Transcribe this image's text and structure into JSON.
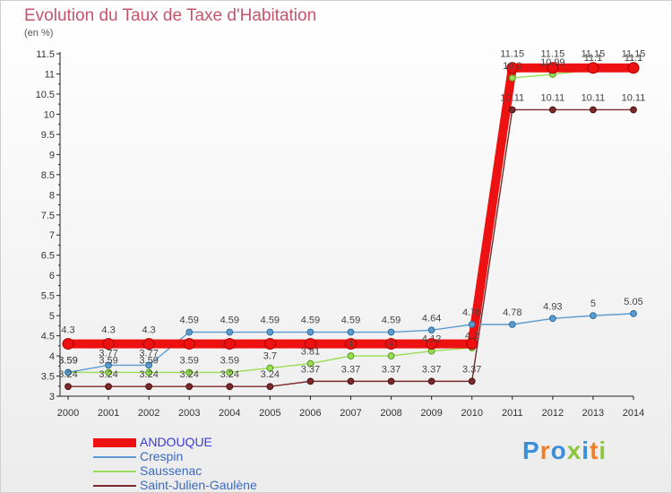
{
  "header": {
    "title": "Evolution du Taux de Taxe d'Habitation",
    "unit": "(en %)"
  },
  "logo": {
    "text": "Proxiti",
    "colors": [
      "#3b8fd6",
      "#f07e26",
      "#3b8fd6",
      "#8cc63f",
      "#3b8fd6",
      "#f07e26",
      "#8cc63f"
    ]
  },
  "chart_data": {
    "type": "line",
    "x": [
      "2000",
      "2001",
      "2002",
      "2003",
      "2004",
      "2005",
      "2006",
      "2007",
      "2008",
      "2009",
      "2010",
      "2011",
      "2012",
      "2013",
      "2014"
    ],
    "ylim": [
      3,
      11.5
    ],
    "yticks": [
      "3",
      "3.5",
      "4",
      "4.5",
      "5",
      "5.5",
      "6",
      "6.5",
      "7",
      "7.5",
      "8",
      "8.5",
      "9",
      "9.5",
      "10",
      "10.5",
      "11",
      "11.5"
    ],
    "grid": false,
    "legend_position": "bottom-left",
    "series": [
      {
        "name": "ANDOUQUE",
        "color": "#ee1111",
        "values": [
          4.3,
          4.3,
          4.3,
          4.3,
          4.3,
          4.3,
          4.3,
          4.3,
          4.3,
          4.3,
          4.3,
          11.15,
          11.15,
          11.15,
          11.15
        ],
        "labels": [
          "4.3",
          "4.3",
          "4.3",
          "",
          "",
          "",
          "",
          "",
          "",
          "",
          "",
          "11.15",
          "11.15",
          "11.15",
          "11.15"
        ]
      },
      {
        "name": "Crespin",
        "color": "#5b9bd0",
        "values": [
          3.59,
          3.77,
          3.77,
          4.59,
          4.59,
          4.59,
          4.59,
          4.59,
          4.59,
          4.64,
          4.78,
          4.78,
          4.93,
          5,
          5.05
        ],
        "labels": [
          "3.59",
          "3.77",
          "3.77",
          "4.59",
          "4.59",
          "4.59",
          "4.59",
          "4.59",
          "4.59",
          "4.64",
          "4.78",
          "4.78",
          "4.93",
          "5",
          "5.05"
        ]
      },
      {
        "name": "Saussenac",
        "color": "#99dd55",
        "values": [
          3.59,
          3.59,
          3.59,
          3.59,
          3.59,
          3.7,
          3.81,
          4,
          4,
          4.12,
          4.2,
          10.9,
          10.99,
          11.1,
          11.1
        ],
        "labels": [
          "3.59",
          "3.59",
          "3.59",
          "3.59",
          "3.59",
          "3.7",
          "3.81",
          "4",
          "4",
          "4.12",
          "4.2",
          "10.9",
          "10.99",
          "11.1",
          "11.1"
        ]
      },
      {
        "name": "Saint-Julien-Gaulène",
        "color": "#7a2a2a",
        "values": [
          3.24,
          3.24,
          3.24,
          3.24,
          3.24,
          3.24,
          3.37,
          3.37,
          3.37,
          3.37,
          3.37,
          10.11,
          10.11,
          10.11,
          10.11
        ],
        "labels": [
          "3.24",
          "3.24",
          "3.24",
          "3.24",
          "3.24",
          "3.24",
          "3.37",
          "3.37",
          "3.37",
          "3.37",
          "3.37",
          "10.11",
          "10.11",
          "10.11",
          "10.11"
        ]
      }
    ]
  }
}
